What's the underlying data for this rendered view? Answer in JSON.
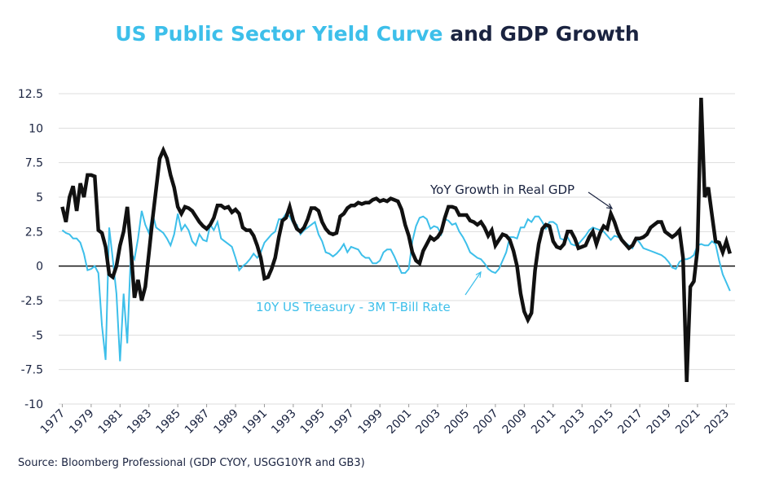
{
  "chart_data": {
    "type": "line",
    "title": [
      "US Public Sector Yield Curve",
      "and GDP Growth"
    ],
    "title_colors": [
      "#3dbfea",
      "#1a2340"
    ],
    "source": "Source: Bloomberg Professional (GDP CYOY, USGG10YR and GB3)",
    "x": [
      1977,
      1977.25,
      1977.5,
      1977.75,
      1978,
      1978.25,
      1978.5,
      1978.75,
      1979,
      1979.25,
      1979.5,
      1979.75,
      1980,
      1980.25,
      1980.5,
      1980.75,
      1981,
      1981.25,
      1981.5,
      1981.75,
      1982,
      1982.25,
      1982.5,
      1982.75,
      1983,
      1983.25,
      1983.5,
      1983.75,
      1984,
      1984.25,
      1984.5,
      1984.75,
      1985,
      1985.25,
      1985.5,
      1985.75,
      1986,
      1986.25,
      1986.5,
      1986.75,
      1987,
      1987.25,
      1987.5,
      1987.75,
      1988,
      1988.25,
      1988.5,
      1988.75,
      1989,
      1989.25,
      1989.5,
      1989.75,
      1990,
      1990.25,
      1990.5,
      1990.75,
      1991,
      1991.25,
      1991.5,
      1991.75,
      1992,
      1992.25,
      1992.5,
      1992.75,
      1993,
      1993.25,
      1993.5,
      1993.75,
      1994,
      1994.25,
      1994.5,
      1994.75,
      1995,
      1995.25,
      1995.5,
      1995.75,
      1996,
      1996.25,
      1996.5,
      1996.75,
      1997,
      1997.25,
      1997.5,
      1997.75,
      1998,
      1998.25,
      1998.5,
      1998.75,
      1999,
      1999.25,
      1999.5,
      1999.75,
      2000,
      2000.25,
      2000.5,
      2000.75,
      2001,
      2001.25,
      2001.5,
      2001.75,
      2002,
      2002.25,
      2002.5,
      2002.75,
      2003,
      2003.25,
      2003.5,
      2003.75,
      2004,
      2004.25,
      2004.5,
      2004.75,
      2005,
      2005.25,
      2005.5,
      2005.75,
      2006,
      2006.25,
      2006.5,
      2006.75,
      2007,
      2007.25,
      2007.5,
      2007.75,
      2008,
      2008.25,
      2008.5,
      2008.75,
      2009,
      2009.25,
      2009.5,
      2009.75,
      2010,
      2010.25,
      2010.5,
      2010.75,
      2011,
      2011.25,
      2011.5,
      2011.75,
      2012,
      2012.25,
      2012.5,
      2012.75,
      2013,
      2013.25,
      2013.5,
      2013.75,
      2014,
      2014.25,
      2014.5,
      2014.75,
      2015,
      2015.25,
      2015.5,
      2015.75,
      2016,
      2016.25,
      2016.5,
      2016.75,
      2017,
      2017.25,
      2017.5,
      2017.75,
      2018,
      2018.25,
      2018.5,
      2018.75,
      2019,
      2019.25,
      2019.5,
      2019.75,
      2020,
      2020.25,
      2020.5,
      2020.75,
      2021,
      2021.25,
      2021.5,
      2021.75,
      2022,
      2022.25,
      2022.5,
      2022.75,
      2023,
      2023.25
    ],
    "series": [
      {
        "name": "10Y US Treasury - 3M T-Bill Rate",
        "color": "#3dbfea",
        "width": 2,
        "values": [
          2.6,
          2.4,
          2.3,
          2.0,
          2.0,
          1.7,
          0.9,
          -0.3,
          -0.2,
          0.0,
          -0.5,
          -4.3,
          -6.8,
          2.8,
          0.5,
          -2.0,
          -6.9,
          -2.0,
          -5.6,
          1.0,
          0.5,
          2.0,
          4.0,
          3.0,
          2.4,
          3.8,
          2.8,
          2.6,
          2.4,
          2.0,
          1.5,
          2.3,
          3.8,
          2.6,
          3.0,
          2.6,
          1.8,
          1.5,
          2.3,
          1.9,
          1.8,
          3.0,
          2.6,
          3.2,
          2.0,
          1.8,
          1.6,
          1.4,
          0.6,
          -0.3,
          0.0,
          0.2,
          0.5,
          0.9,
          0.6,
          1.0,
          1.7,
          2.0,
          2.3,
          2.5,
          3.4,
          3.4,
          3.8,
          3.6,
          3.1,
          3.0,
          2.3,
          2.6,
          2.8,
          3.0,
          3.2,
          2.3,
          1.8,
          1.0,
          0.9,
          0.7,
          0.9,
          1.2,
          1.6,
          1.0,
          1.4,
          1.3,
          1.2,
          0.8,
          0.6,
          0.6,
          0.2,
          0.2,
          0.4,
          1.0,
          1.2,
          1.2,
          0.7,
          0.1,
          -0.5,
          -0.5,
          -0.2,
          1.8,
          2.9,
          3.5,
          3.6,
          3.4,
          2.7,
          2.9,
          2.8,
          2.3,
          3.4,
          3.3,
          3.0,
          3.1,
          2.5,
          2.1,
          1.6,
          1.0,
          0.8,
          0.6,
          0.5,
          0.2,
          -0.2,
          -0.4,
          -0.5,
          -0.2,
          0.4,
          1.0,
          2.1,
          2.1,
          2.0,
          2.8,
          2.8,
          3.4,
          3.2,
          3.6,
          3.6,
          3.2,
          2.7,
          3.2,
          3.2,
          3.0,
          2.0,
          1.9,
          2.1,
          1.6,
          1.5,
          1.6,
          1.9,
          2.2,
          2.6,
          2.8,
          2.7,
          2.6,
          2.5,
          2.2,
          1.9,
          2.2,
          2.1,
          2.0,
          1.7,
          1.5,
          1.3,
          2.0,
          1.7,
          1.3,
          1.2,
          1.1,
          1.0,
          0.9,
          0.8,
          0.6,
          0.3,
          -0.1,
          -0.2,
          0.3,
          0.5,
          0.5,
          0.6,
          0.8,
          1.5,
          1.6,
          1.5,
          1.5,
          1.8,
          1.6,
          0.4,
          -0.6,
          -1.2,
          -1.8
        ]
      },
      {
        "name": "YoY Growth in Real GDP",
        "color": "#111111",
        "width": 4.5,
        "values": [
          4.3,
          3.2,
          5.0,
          5.8,
          4.0,
          6.0,
          5.0,
          6.6,
          6.6,
          6.5,
          2.6,
          2.4,
          1.4,
          -0.6,
          -0.8,
          0.0,
          1.5,
          2.5,
          4.3,
          1.3,
          -2.3,
          -1.0,
          -2.5,
          -1.5,
          0.9,
          3.4,
          5.6,
          7.8,
          8.4,
          7.8,
          6.6,
          5.7,
          4.3,
          3.8,
          4.3,
          4.2,
          4.0,
          3.6,
          3.2,
          2.9,
          2.7,
          3.0,
          3.5,
          4.4,
          4.4,
          4.2,
          4.3,
          3.9,
          4.1,
          3.8,
          2.8,
          2.6,
          2.6,
          2.2,
          1.5,
          0.6,
          -0.9,
          -0.8,
          -0.2,
          0.6,
          2.1,
          3.3,
          3.5,
          4.3,
          3.3,
          2.7,
          2.5,
          2.8,
          3.4,
          4.2,
          4.2,
          4.0,
          3.2,
          2.7,
          2.4,
          2.3,
          2.4,
          3.6,
          3.8,
          4.2,
          4.4,
          4.4,
          4.6,
          4.5,
          4.6,
          4.6,
          4.8,
          4.9,
          4.7,
          4.8,
          4.7,
          4.9,
          4.8,
          4.7,
          4.1,
          3.0,
          2.2,
          1.0,
          0.4,
          0.2,
          1.1,
          1.6,
          2.1,
          1.9,
          2.1,
          2.5,
          3.5,
          4.3,
          4.3,
          4.2,
          3.7,
          3.7,
          3.7,
          3.3,
          3.2,
          3.0,
          3.2,
          2.8,
          2.2,
          2.6,
          1.5,
          1.9,
          2.3,
          2.2,
          1.9,
          1.1,
          0.0,
          -2.0,
          -3.3,
          -3.9,
          -3.4,
          -0.3,
          1.6,
          2.7,
          3.0,
          2.9,
          1.8,
          1.4,
          1.3,
          1.6,
          2.5,
          2.5,
          2.0,
          1.3,
          1.4,
          1.5,
          2.1,
          2.5,
          1.6,
          2.4,
          2.9,
          2.7,
          3.8,
          3.2,
          2.4,
          1.9,
          1.6,
          1.3,
          1.5,
          2.0,
          2.0,
          2.1,
          2.3,
          2.8,
          3.0,
          3.2,
          3.2,
          2.5,
          2.3,
          2.1,
          2.3,
          2.6,
          0.6,
          -8.4,
          -1.5,
          -1.1,
          1.2,
          12.2,
          5.0,
          5.7,
          3.7,
          1.8,
          1.7,
          1.0,
          1.8,
          0.9
        ]
      }
    ],
    "xlim": [
      1976.75,
      2023.6
    ],
    "xticks": [
      1977,
      1979,
      1981,
      1983,
      1985,
      1987,
      1989,
      1991,
      1993,
      1995,
      1997,
      1999,
      2001,
      2003,
      2005,
      2007,
      2009,
      2011,
      2013,
      2015,
      2017,
      2019,
      2021,
      2023
    ],
    "ylim": [
      -10,
      12.5
    ],
    "yticks": [
      -10,
      -7.5,
      -5,
      -2.5,
      0,
      2.5,
      5,
      7.5,
      10,
      12.5
    ],
    "grid": true
  }
}
